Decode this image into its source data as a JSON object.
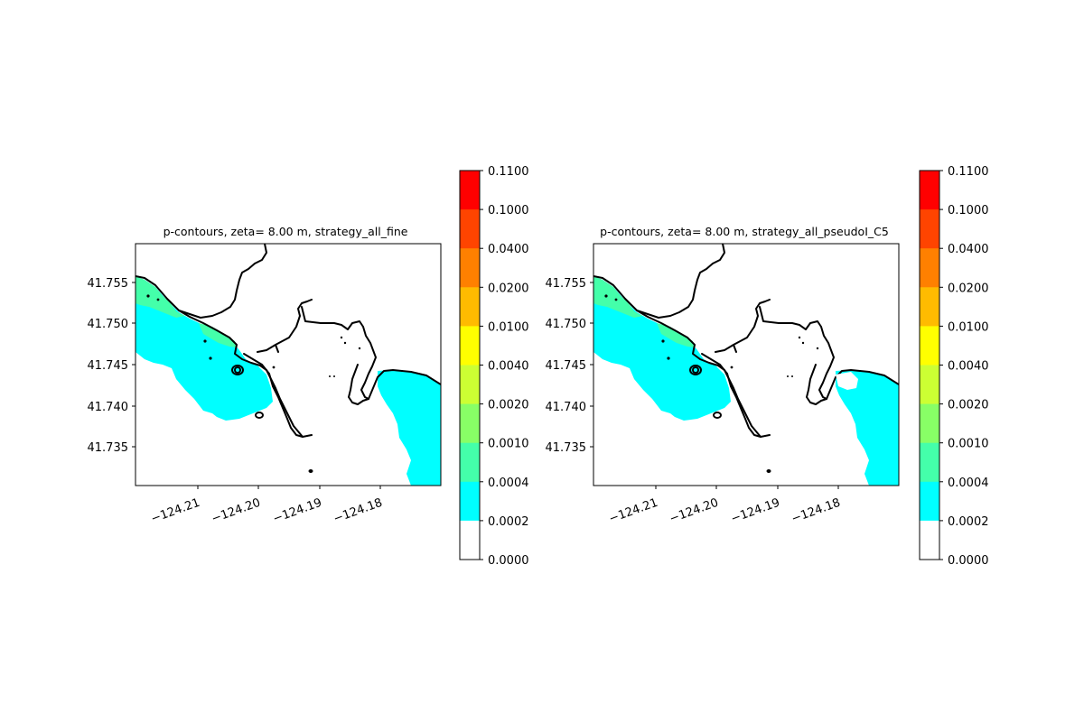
{
  "chart_data": [
    {
      "type": "map",
      "title": "p-contours, zeta= 8.00 m, strategy_all_fine",
      "xticks": [
        "−124.21",
        "−124.20",
        "−124.19",
        "−124.18"
      ],
      "yticks": [
        "41.755",
        "41.750",
        "41.745",
        "41.740",
        "41.735"
      ],
      "colorbar": {
        "levels": [
          "0.1100",
          "0.1000",
          "0.0400",
          "0.0200",
          "0.0100",
          "0.0040",
          "0.0020",
          "0.0010",
          "0.0004",
          "0.0002",
          "0.0000"
        ],
        "colors": [
          "#ff0000",
          "#ff4400",
          "#ff8000",
          "#ffbb00",
          "#ffff00",
          "#ccff33",
          "#88ff66",
          "#44ffaa",
          "#00ffff",
          "#ffffff"
        ]
      }
    },
    {
      "type": "map",
      "title": "p-contours, zeta= 8.00 m, strategy_all_pseudoI_C5",
      "xticks": [
        "−124.21",
        "−124.20",
        "−124.19",
        "−124.18"
      ],
      "yticks": [
        "41.755",
        "41.750",
        "41.745",
        "41.740",
        "41.735"
      ],
      "colorbar": {
        "levels": [
          "0.1100",
          "0.1000",
          "0.0400",
          "0.0200",
          "0.0100",
          "0.0040",
          "0.0020",
          "0.0010",
          "0.0004",
          "0.0002",
          "0.0000"
        ],
        "colors": [
          "#ff0000",
          "#ff4400",
          "#ff8000",
          "#ffbb00",
          "#ffff00",
          "#ccff33",
          "#88ff66",
          "#44ffaa",
          "#00ffff",
          "#ffffff"
        ]
      }
    }
  ]
}
